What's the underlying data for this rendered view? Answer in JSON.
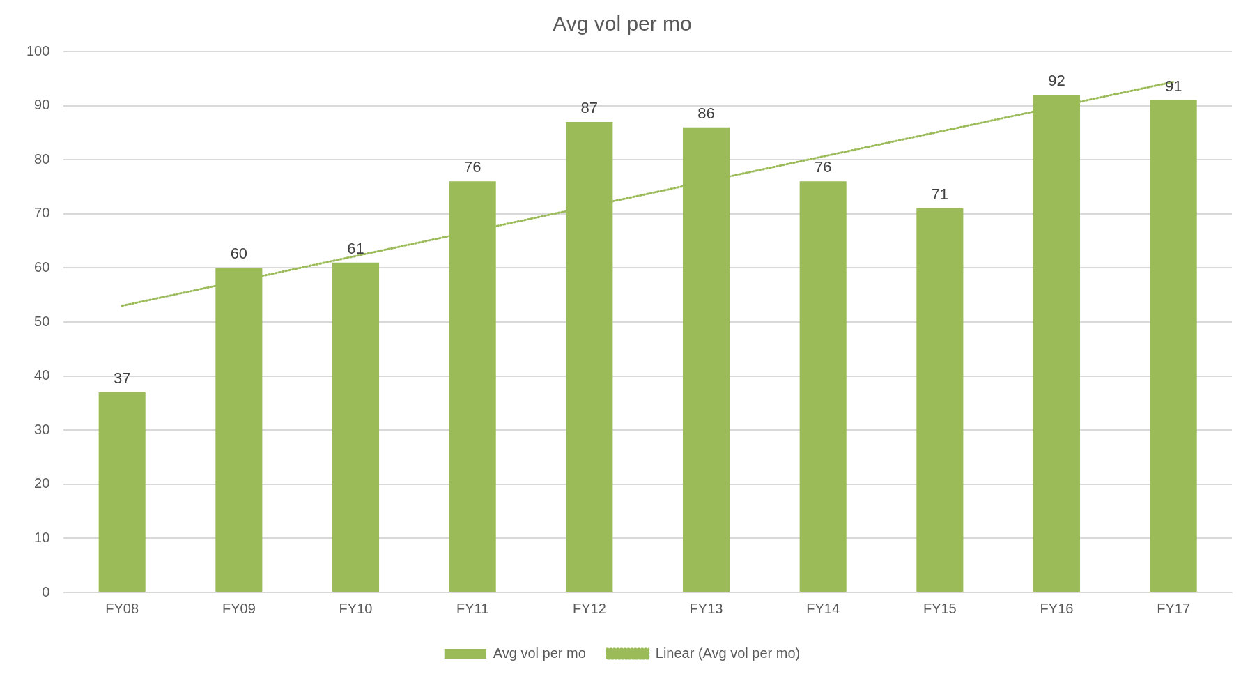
{
  "chart_data": {
    "type": "bar",
    "title": "Avg vol per mo",
    "categories": [
      "FY08",
      "FY09",
      "FY10",
      "FY11",
      "FY12",
      "FY13",
      "FY14",
      "FY15",
      "FY16",
      "FY17"
    ],
    "series": [
      {
        "name": "Avg vol per mo",
        "color": "#9bbb59",
        "values": [
          37,
          60,
          61,
          76,
          87,
          86,
          76,
          71,
          92,
          91
        ],
        "value_labels": [
          "37",
          "60",
          "61",
          "76",
          "87",
          "86",
          "76",
          "71",
          "92",
          "91"
        ]
      },
      {
        "name": "Linear (Avg vol per mo)",
        "type": "line",
        "color": "#9bbb59",
        "line_style": "dotted",
        "marker": "none",
        "x": [
          "FY08",
          "FY17"
        ],
        "values": [
          53,
          94.4
        ]
      }
    ],
    "ylim": [
      0,
      100
    ],
    "yticks": [
      0,
      10,
      20,
      30,
      40,
      50,
      60,
      70,
      80,
      90,
      100
    ],
    "grid": "y",
    "legend": "bottom"
  }
}
